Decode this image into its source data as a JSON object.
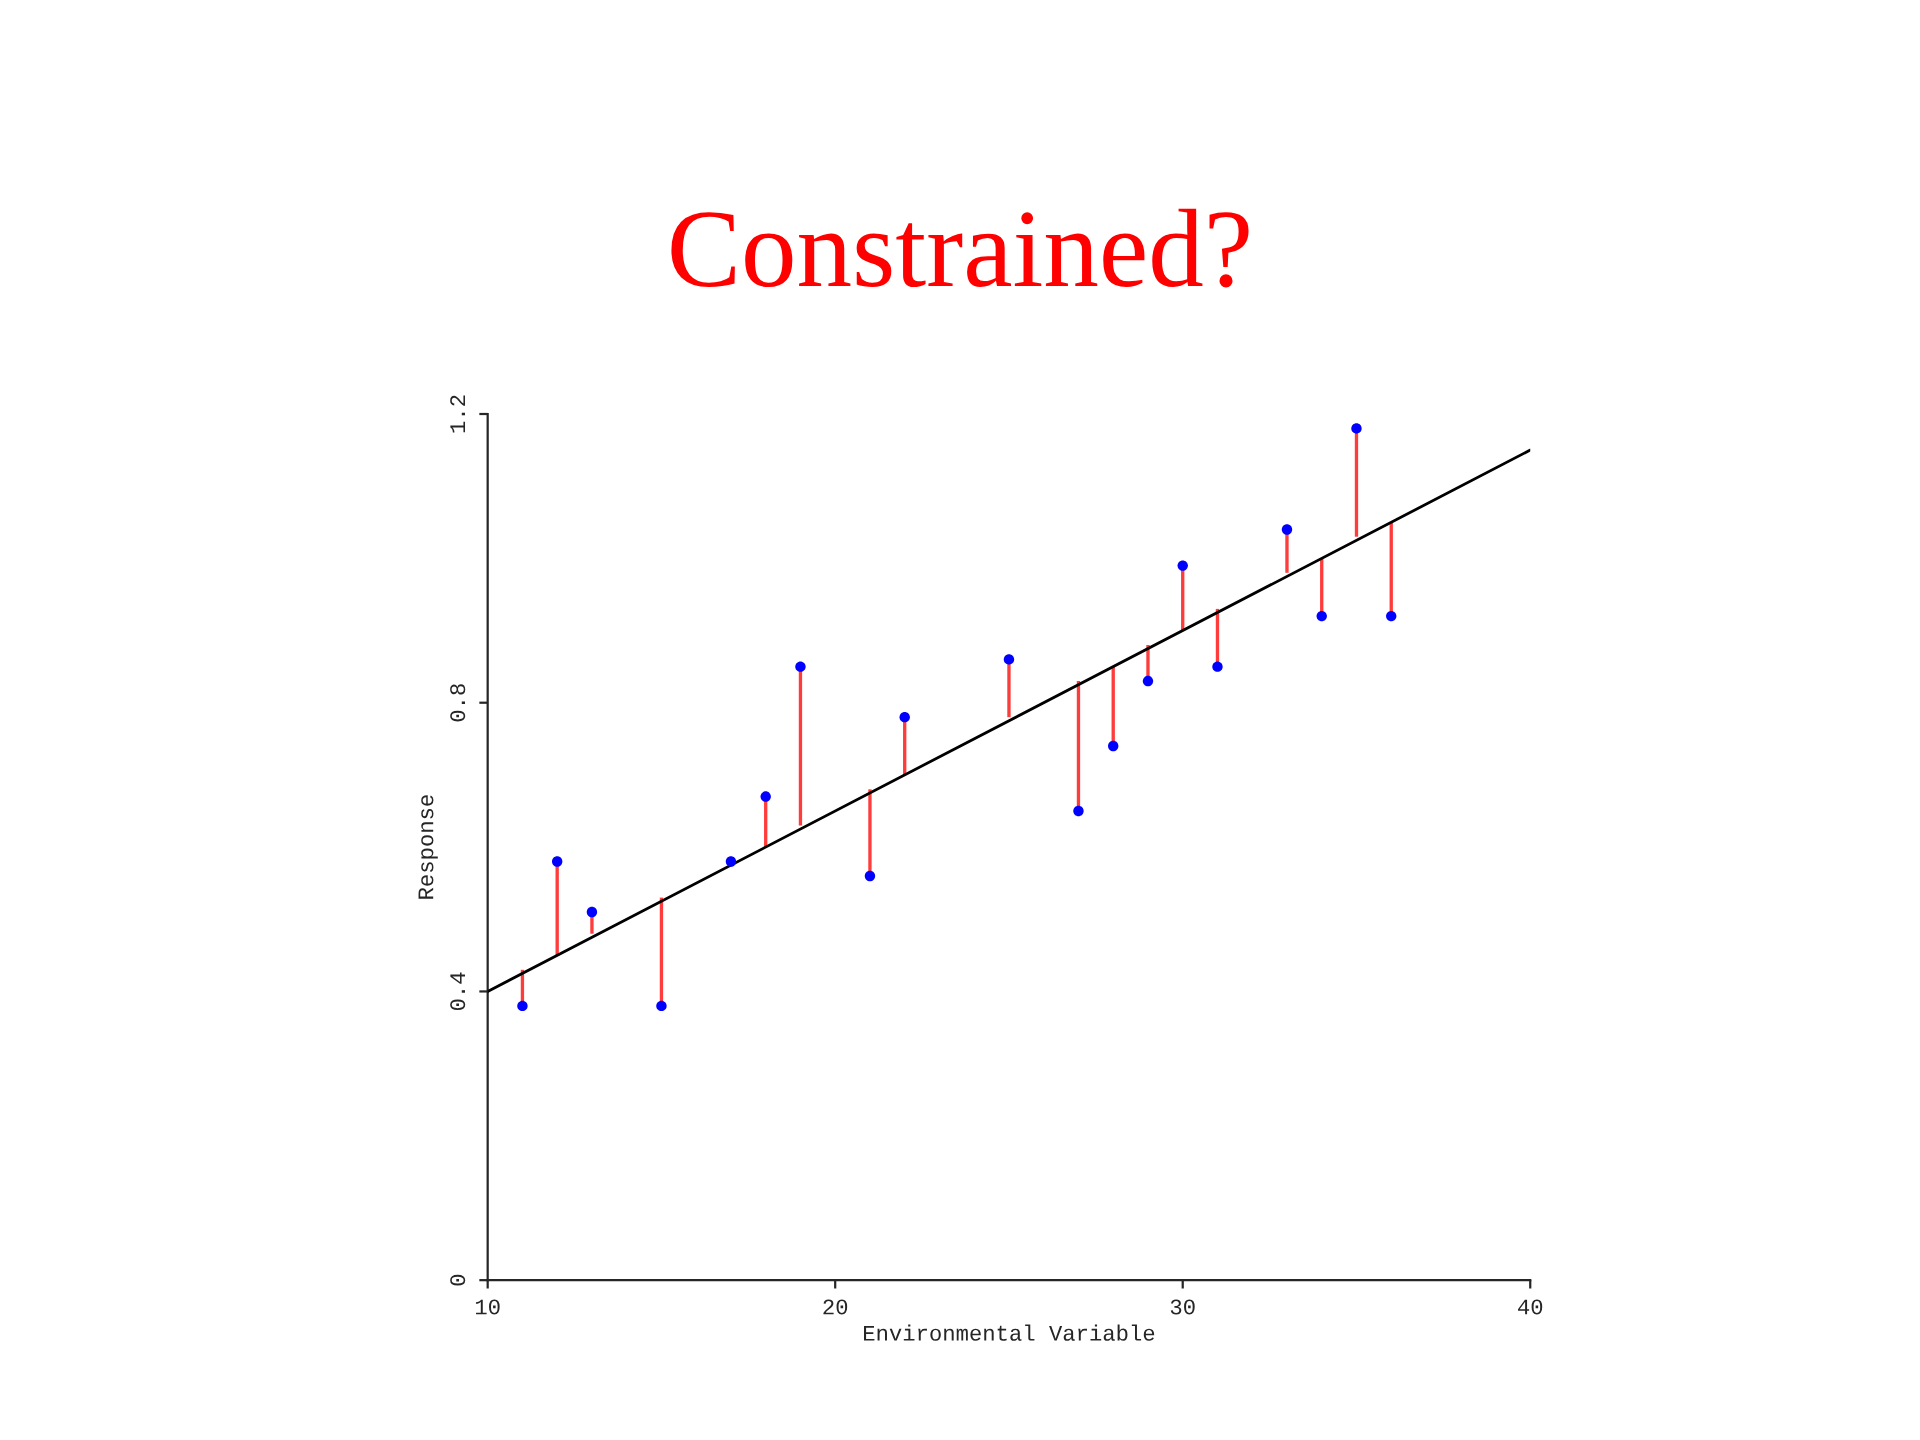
{
  "chart_data": {
    "type": "scatter",
    "title": "Constrained?",
    "xlabel": "Environmental Variable",
    "ylabel": "Response",
    "xlim": [
      10,
      40
    ],
    "xticks": [
      10,
      20,
      30,
      40
    ],
    "ylim": [
      0,
      1.2
    ],
    "yticks": [
      0,
      0.4,
      0.8,
      1.2
    ],
    "grid": false,
    "legend": false,
    "series": [
      {
        "color": "#0000ff",
        "marker": "circle",
        "x": [
          11,
          12,
          13,
          15,
          17,
          18,
          19,
          21,
          22,
          25,
          27,
          28,
          29,
          30,
          31,
          33,
          34,
          35,
          36
        ],
        "values": [
          0.38,
          0.58,
          0.51,
          0.38,
          0.58,
          0.67,
          0.85,
          0.56,
          0.78,
          0.86,
          0.65,
          0.74,
          0.83,
          0.99,
          0.85,
          1.04,
          0.92,
          1.18,
          0.92
        ],
        "errors": [
          [
            0.38,
            0.43
          ],
          [
            0.45,
            0.58
          ],
          [
            0.48,
            0.51
          ],
          [
            0.38,
            0.53
          ],
          null,
          [
            0.6,
            0.67
          ],
          [
            0.63,
            0.85
          ],
          [
            0.56,
            0.68
          ],
          [
            0.7,
            0.78
          ],
          [
            0.78,
            0.86
          ],
          [
            0.65,
            0.83
          ],
          [
            0.74,
            0.85
          ],
          [
            0.83,
            0.88
          ],
          [
            0.9,
            0.99
          ],
          [
            0.85,
            0.93
          ],
          [
            0.98,
            1.04
          ],
          [
            0.92,
            1.0
          ],
          [
            1.03,
            1.18
          ],
          [
            0.92,
            1.05
          ]
        ]
      },
      {
        "type": "line",
        "color": "#000000",
        "x": [
          10,
          40
        ],
        "values": [
          0.4,
          1.15
        ]
      }
    ]
  }
}
